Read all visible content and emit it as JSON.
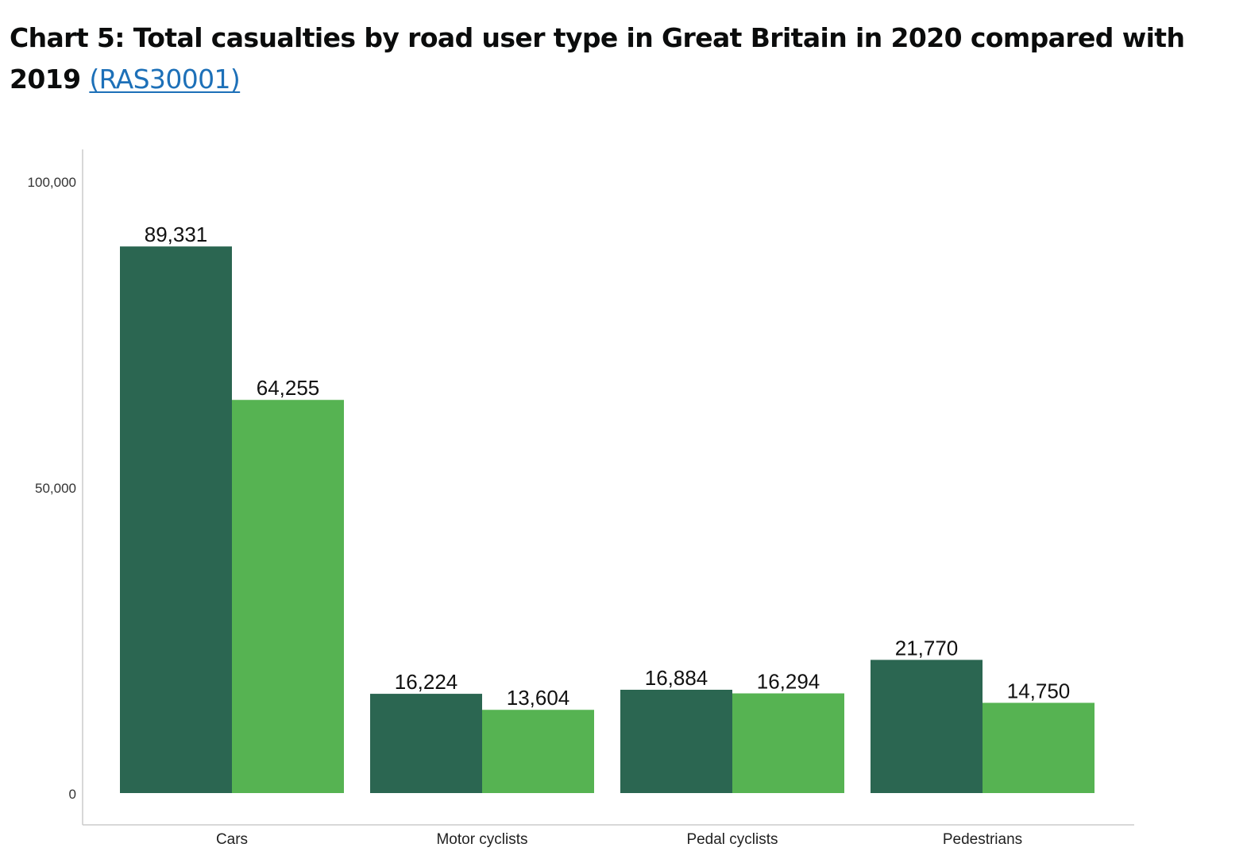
{
  "heading": {
    "title": "Chart 5: Total casualties by road user type in Great Britain in 2020 compared with 2019",
    "link_text": "(RAS30001)"
  },
  "colors": {
    "series_2019": "#2b6651",
    "series_2020": "#56b352",
    "axis": "#cccccc",
    "link": "#1d70b8"
  },
  "chart_data": {
    "type": "bar",
    "title": "Chart 5: Total casualties by road user type in Great Britain in 2020 compared with 2019",
    "xlabel": "",
    "ylabel": "",
    "categories": [
      "Cars",
      "Motor cyclists",
      "Pedal cyclists",
      "Pedestrians"
    ],
    "series": [
      {
        "values": [
          89331,
          16224,
          16884,
          21770
        ],
        "labels": [
          "89,331",
          "16,224",
          "16,884",
          "21,770"
        ],
        "color": "#2b6651"
      },
      {
        "values": [
          64255,
          13604,
          16294,
          14750
        ],
        "labels": [
          "64,255",
          "13,604",
          "16,294",
          "14,750"
        ],
        "color": "#56b352"
      }
    ],
    "ylim": [
      0,
      105000
    ],
    "yticks": [
      0,
      50000,
      100000
    ],
    "ytick_labels": [
      "0",
      "50,000",
      "100,000"
    ],
    "grid": false,
    "legend": "none"
  }
}
